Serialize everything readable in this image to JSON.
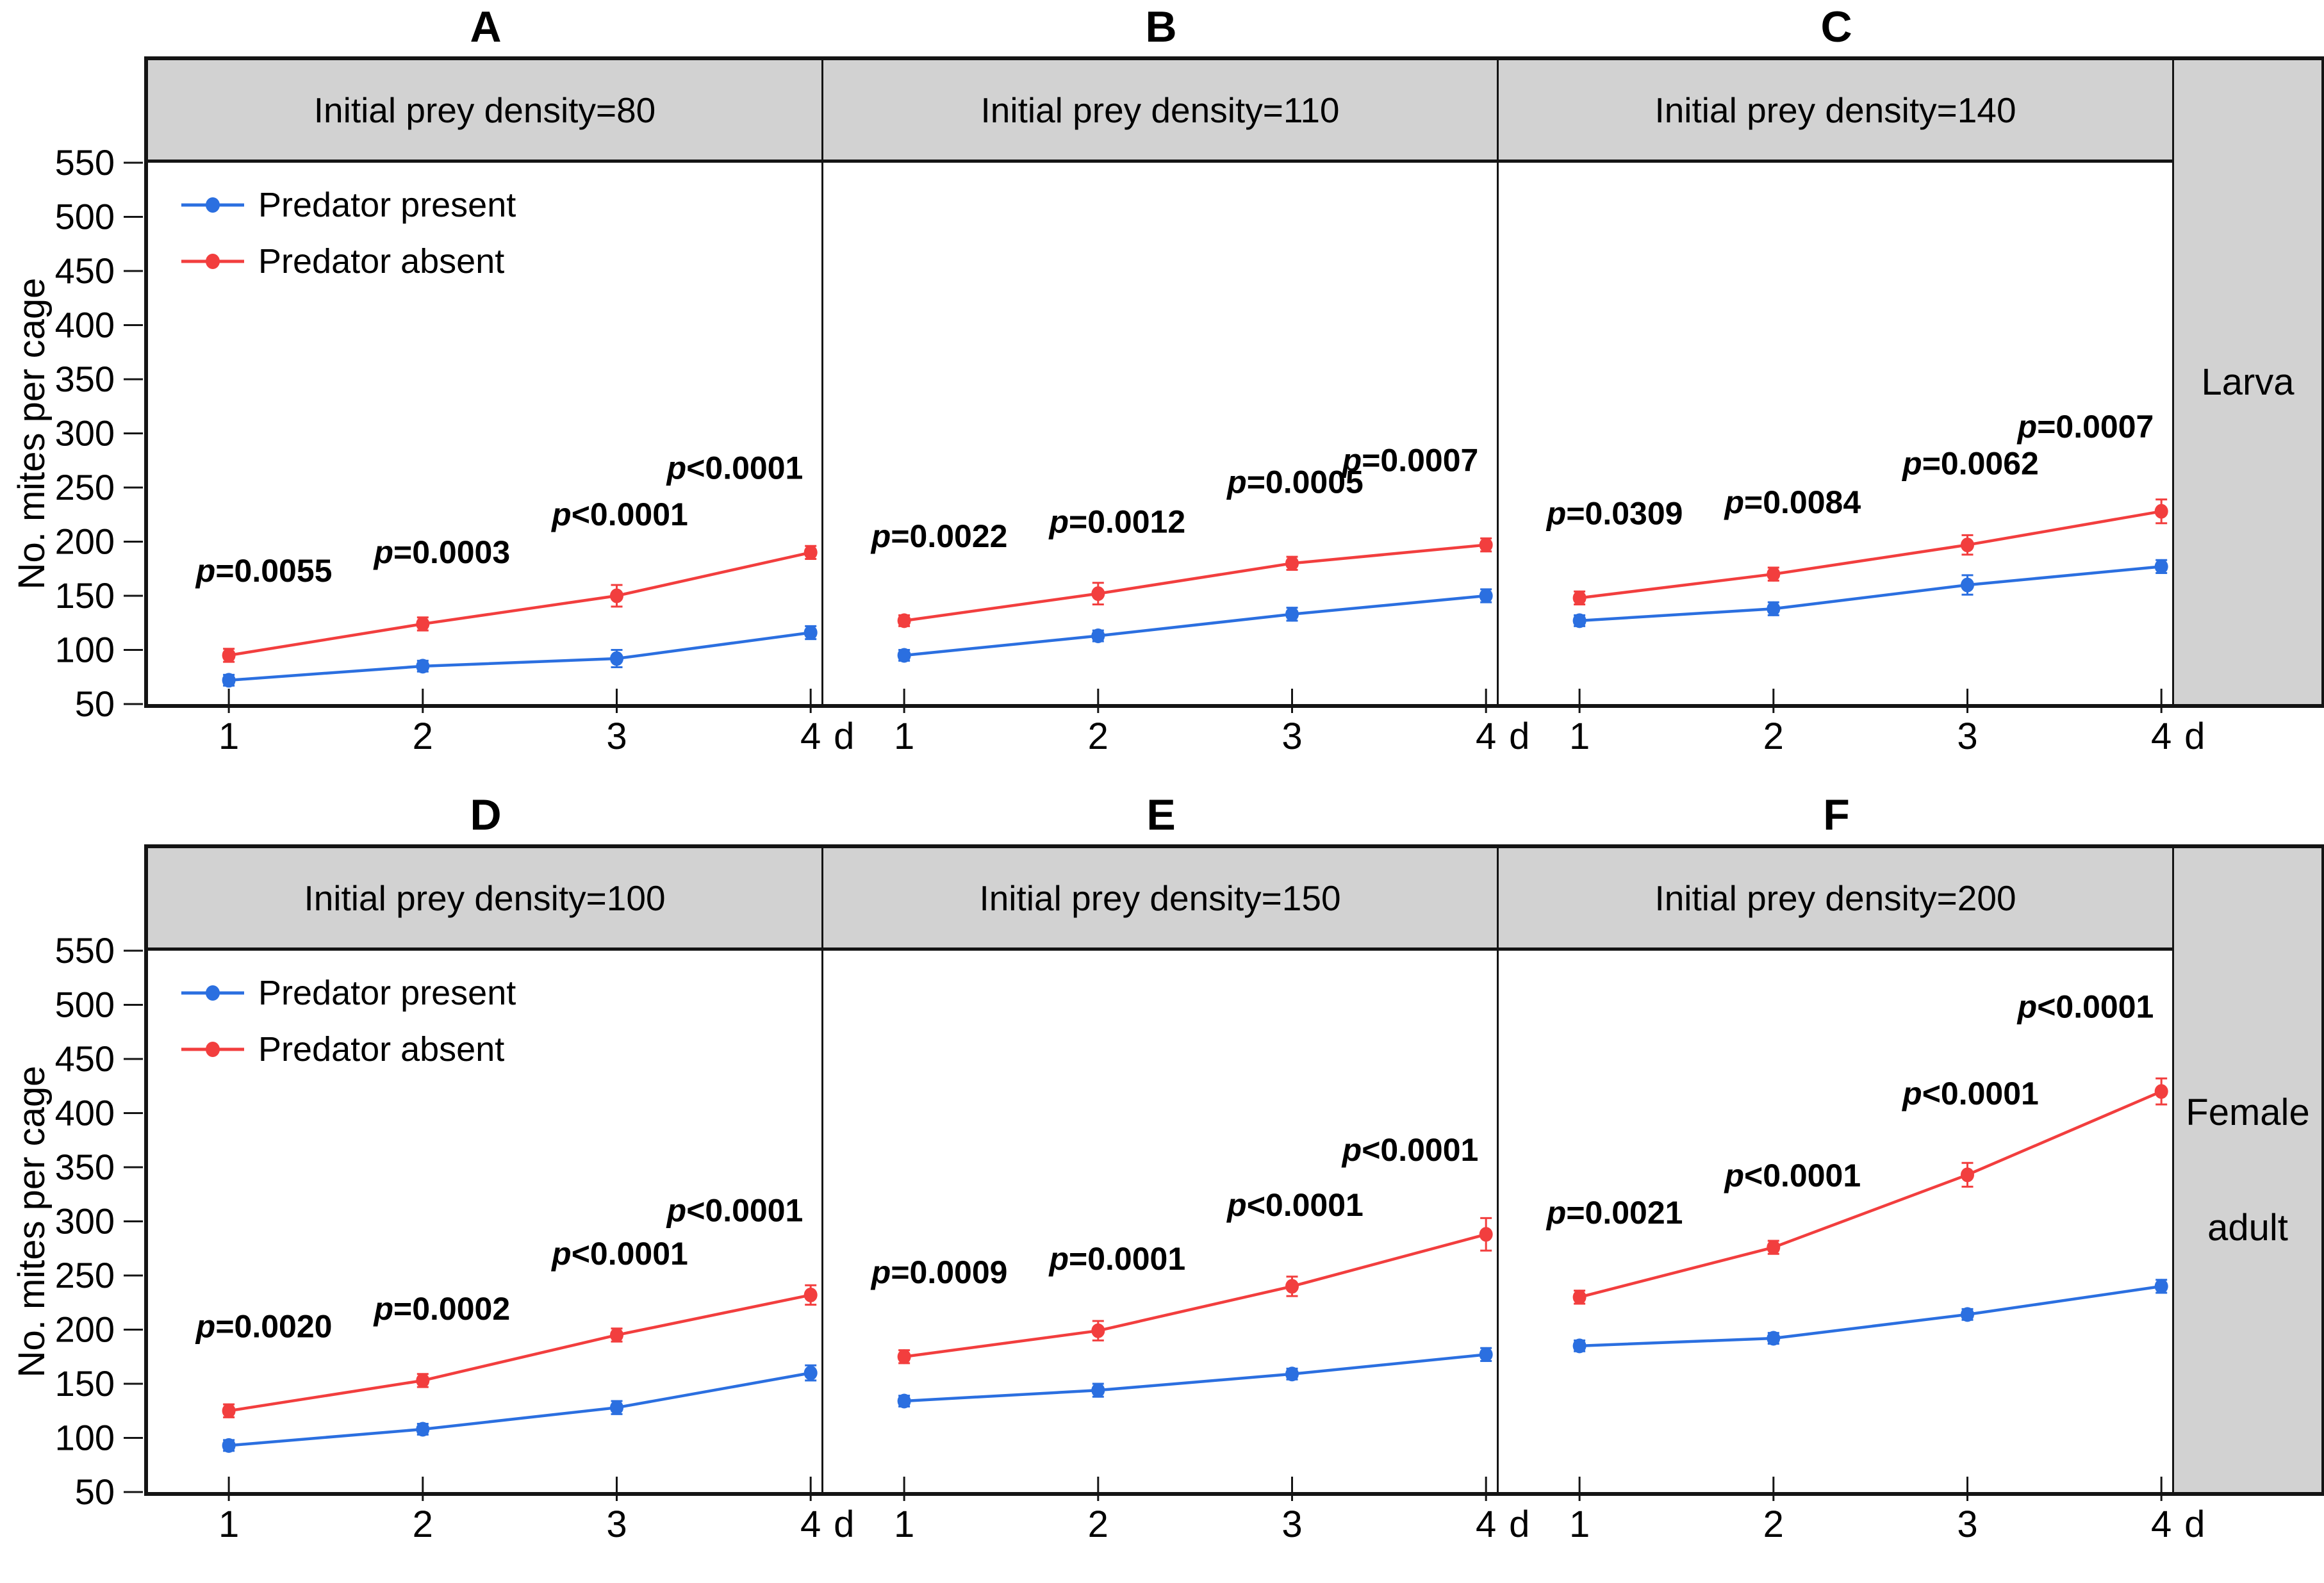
{
  "axes": {
    "y_label": "No. mites per cage",
    "y_ticks": [
      "550",
      "500",
      "450",
      "400",
      "350",
      "300",
      "250",
      "200",
      "150",
      "100",
      "50"
    ],
    "y_range": [
      50,
      550
    ],
    "x_ticks": [
      "1",
      "2",
      "3",
      "4"
    ],
    "x_unit": "d"
  },
  "legend": {
    "items": [
      {
        "label": "Predator present",
        "series": "present"
      },
      {
        "label": "Predator absent",
        "series": "absent"
      }
    ]
  },
  "colors": {
    "present": "#2b6fe0",
    "absent": "#f23e3e",
    "header_bg": "#d2d2d2",
    "sidebar_bg": "#d2d2d2",
    "border": "#141414",
    "text": "#000000"
  },
  "rows": [
    {
      "side_label_lines": [
        "Larva"
      ],
      "panel_ids": [
        "A",
        "B",
        "C"
      ],
      "legend_panel": "A"
    },
    {
      "side_label_lines": [
        "Female",
        "adult"
      ],
      "panel_ids": [
        "D",
        "E",
        "F"
      ],
      "legend_panel": "D"
    }
  ],
  "chart_data": [
    {
      "panel": "A",
      "title": "Initial prey density=80",
      "type": "line",
      "x": [
        1,
        2,
        3,
        4
      ],
      "x_unit": "d",
      "ylabel": "No. mites per cage",
      "ylim": [
        50,
        550
      ],
      "ytick_step": 50,
      "series": [
        {
          "name": "Predator present",
          "key": "present",
          "values": [
            72,
            85,
            92,
            116
          ],
          "errors": [
            5,
            5,
            8,
            6
          ]
        },
        {
          "name": "Predator absent",
          "key": "absent",
          "values": [
            95,
            124,
            150,
            190
          ],
          "errors": [
            6,
            6,
            10,
            6
          ]
        }
      ],
      "p_values": [
        "p=0.0055",
        "p=0.0003",
        "p<0.0001",
        "p<0.0001"
      ]
    },
    {
      "panel": "B",
      "title": "Initial prey density=110",
      "type": "line",
      "x": [
        1,
        2,
        3,
        4
      ],
      "x_unit": "d",
      "ylabel": "No. mites per cage",
      "ylim": [
        50,
        550
      ],
      "ytick_step": 50,
      "series": [
        {
          "name": "Predator present",
          "key": "present",
          "values": [
            95,
            113,
            133,
            150
          ],
          "errors": [
            5,
            5,
            6,
            6
          ]
        },
        {
          "name": "Predator absent",
          "key": "absent",
          "values": [
            127,
            152,
            180,
            197
          ],
          "errors": [
            5,
            10,
            6,
            6
          ]
        }
      ],
      "p_values": [
        "p=0.0022",
        "p=0.0012",
        "p=0.0005",
        "p=0.0007"
      ]
    },
    {
      "panel": "C",
      "title": "Initial prey density=140",
      "type": "line",
      "x": [
        1,
        2,
        3,
        4
      ],
      "x_unit": "d",
      "ylabel": "No. mites per cage",
      "ylim": [
        50,
        550
      ],
      "ytick_step": 50,
      "series": [
        {
          "name": "Predator present",
          "key": "present",
          "values": [
            127,
            138,
            160,
            177
          ],
          "errors": [
            5,
            6,
            9,
            6
          ]
        },
        {
          "name": "Predator absent",
          "key": "absent",
          "values": [
            148,
            170,
            197,
            228
          ],
          "errors": [
            6,
            6,
            9,
            11
          ]
        }
      ],
      "p_values": [
        "p=0.0309",
        "p=0.0084",
        "p=0.0062",
        "p=0.0007"
      ]
    },
    {
      "panel": "D",
      "title": "Initial prey density=100",
      "type": "line",
      "x": [
        1,
        2,
        3,
        4
      ],
      "x_unit": "d",
      "ylabel": "No. mites per cage",
      "ylim": [
        50,
        550
      ],
      "ytick_step": 50,
      "series": [
        {
          "name": "Predator present",
          "key": "present",
          "values": [
            93,
            108,
            128,
            160
          ],
          "errors": [
            5,
            5,
            6,
            7
          ]
        },
        {
          "name": "Predator absent",
          "key": "absent",
          "values": [
            125,
            153,
            195,
            232
          ],
          "errors": [
            6,
            6,
            6,
            9
          ]
        }
      ],
      "p_values": [
        "p=0.0020",
        "p=0.0002",
        "p<0.0001",
        "p<0.0001"
      ]
    },
    {
      "panel": "E",
      "title": "Initial prey density=150",
      "type": "line",
      "x": [
        1,
        2,
        3,
        4
      ],
      "x_unit": "d",
      "ylabel": "No. mites per cage",
      "ylim": [
        50,
        550
      ],
      "ytick_step": 50,
      "series": [
        {
          "name": "Predator present",
          "key": "present",
          "values": [
            134,
            144,
            159,
            177
          ],
          "errors": [
            5,
            6,
            5,
            6
          ]
        },
        {
          "name": "Predator absent",
          "key": "absent",
          "values": [
            175,
            199,
            240,
            288
          ],
          "errors": [
            6,
            9,
            9,
            15
          ]
        }
      ],
      "p_values": [
        "p=0.0009",
        "p=0.0001",
        "p<0.0001",
        "p<0.0001"
      ]
    },
    {
      "panel": "F",
      "title": "Initial prey density=200",
      "type": "line",
      "x": [
        1,
        2,
        3,
        4
      ],
      "x_unit": "d",
      "ylabel": "No. mites per cage",
      "ylim": [
        50,
        550
      ],
      "ytick_step": 50,
      "series": [
        {
          "name": "Predator present",
          "key": "present",
          "values": [
            185,
            192,
            214,
            240
          ],
          "errors": [
            5,
            5,
            5,
            6
          ]
        },
        {
          "name": "Predator absent",
          "key": "absent",
          "values": [
            230,
            276,
            343,
            420
          ],
          "errors": [
            6,
            6,
            11,
            12
          ]
        }
      ],
      "p_values": [
        "p=0.0021",
        "p<0.0001",
        "p<0.0001",
        "p<0.0001"
      ]
    }
  ]
}
